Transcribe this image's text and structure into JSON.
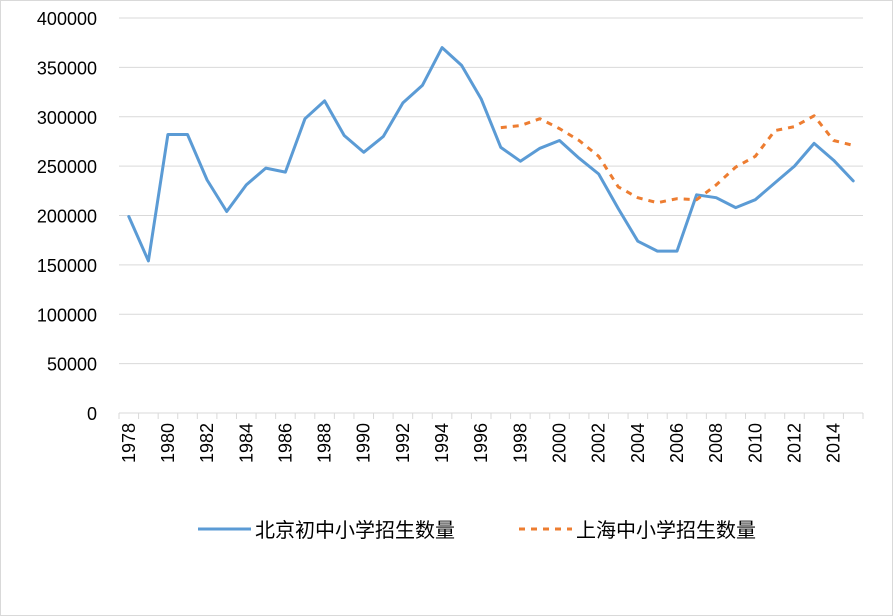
{
  "chart_data": {
    "type": "line",
    "title": "",
    "xlabel": "",
    "ylabel": "",
    "ylim": [
      0,
      400000
    ],
    "y_ticks": [
      "0",
      "50000",
      "100000",
      "150000",
      "200000",
      "250000",
      "300000",
      "350000",
      "400000"
    ],
    "x": [
      1978,
      1979,
      1980,
      1981,
      1982,
      1983,
      1984,
      1985,
      1986,
      1987,
      1988,
      1989,
      1990,
      1991,
      1992,
      1993,
      1994,
      1995,
      1996,
      1997,
      1998,
      1999,
      2000,
      2001,
      2002,
      2003,
      2004,
      2005,
      2006,
      2007,
      2008,
      2009,
      2010,
      2011,
      2012,
      2013,
      2014,
      2015
    ],
    "x_tick_labels": [
      "1978",
      "1980",
      "1982",
      "1984",
      "1986",
      "1988",
      "1990",
      "1992",
      "1994",
      "1996",
      "1998",
      "2000",
      "2002",
      "2004",
      "2006",
      "2008",
      "2010",
      "2012",
      "2014"
    ],
    "grid": "horizontal",
    "legend": "bottom",
    "series": [
      {
        "name": "北京初中小学招生数量",
        "color": "#5b9bd5",
        "style": "solid",
        "x": [
          1978,
          1979,
          1980,
          1981,
          1982,
          1983,
          1984,
          1985,
          1986,
          1987,
          1988,
          1989,
          1990,
          1991,
          1992,
          1993,
          1994,
          1995,
          1996,
          1997,
          1998,
          1999,
          2000,
          2001,
          2002,
          2003,
          2004,
          2005,
          2006,
          2007,
          2008,
          2009,
          2010,
          2011,
          2012,
          2013,
          2014,
          2015
        ],
        "values": [
          199000,
          154000,
          282000,
          282000,
          236000,
          204000,
          231000,
          248000,
          244000,
          298000,
          316000,
          281000,
          264000,
          280000,
          314000,
          332000,
          370000,
          352000,
          318000,
          269000,
          255000,
          268000,
          276000,
          258000,
          242000,
          207000,
          174000,
          164000,
          164000,
          221000,
          218000,
          208000,
          216000,
          233000,
          250000,
          273000,
          256000,
          235000
        ]
      },
      {
        "name": "上海中小学招生数量",
        "color": "#ed7d31",
        "style": "dashed",
        "x": [
          1997,
          1998,
          1999,
          2000,
          2001,
          2002,
          2003,
          2004,
          2005,
          2006,
          2007,
          2008,
          2009,
          2010,
          2011,
          2012,
          2013,
          2014,
          2015
        ],
        "values": [
          289000,
          291000,
          298000,
          288000,
          276000,
          260000,
          229000,
          218000,
          213000,
          217000,
          216000,
          231000,
          249000,
          260000,
          286000,
          290000,
          301000,
          276000,
          271000
        ]
      }
    ]
  }
}
